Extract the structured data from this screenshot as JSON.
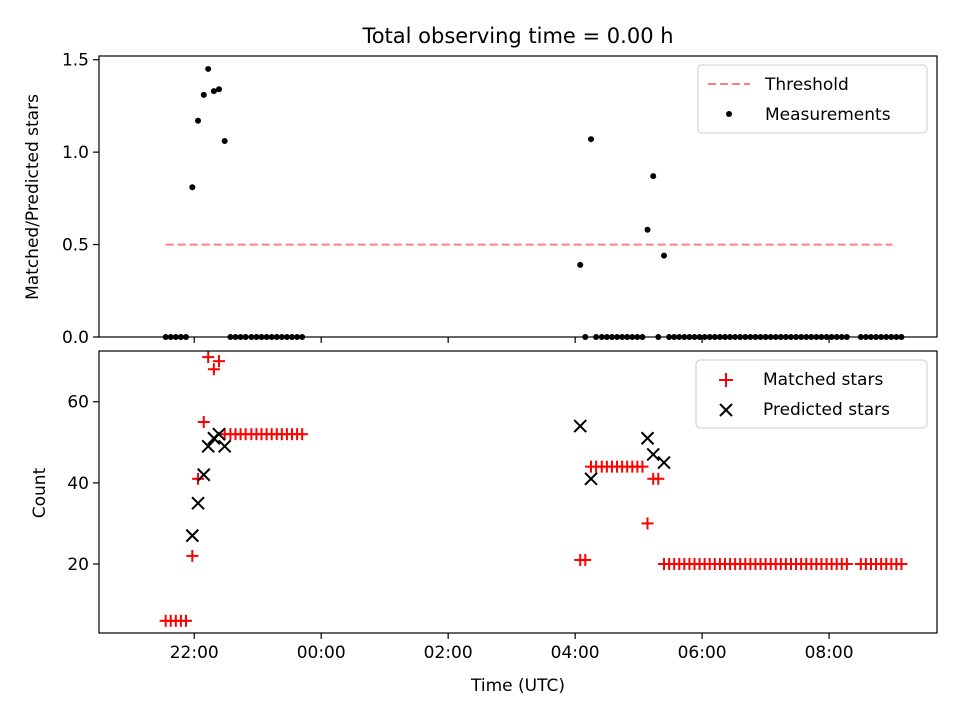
{
  "figure": {
    "title": "Total observing time = 0.00 h",
    "xlabel": "Time (UTC)",
    "x_ticks": [
      {
        "t": 22,
        "label": "22:00"
      },
      {
        "t": 24,
        "label": "00:00"
      },
      {
        "t": 26,
        "label": "02:00"
      },
      {
        "t": 28,
        "label": "04:00"
      },
      {
        "t": 30,
        "label": "06:00"
      },
      {
        "t": 32,
        "label": "08:00"
      }
    ],
    "xlim_hours_since_midnight_day1": [
      20.5,
      33.7
    ]
  },
  "colors": {
    "threshold": "#ff7f7f",
    "measurements": "#000000",
    "matched": "#ff0000",
    "predicted": "#000000"
  },
  "chart_data": [
    {
      "type": "scatter",
      "ylabel": "Matched/Predicted stars",
      "ylim": [
        0,
        1.52
      ],
      "y_ticks": [
        {
          "v": 0,
          "label": "0.0"
        },
        {
          "v": 0.5,
          "label": "0.5"
        },
        {
          "v": 1.0,
          "label": "1.0"
        },
        {
          "v": 1.5,
          "label": "1.5"
        }
      ],
      "legend": {
        "placement": "upper right",
        "entries": [
          "Threshold",
          "Measurements"
        ]
      },
      "threshold": {
        "name": "Threshold",
        "value": 0.5,
        "x_range": [
          21.55,
          33.0
        ]
      },
      "series": [
        {
          "name": "Measurements",
          "points": [
            [
              21.55,
              0
            ],
            [
              21.63,
              0
            ],
            [
              21.71,
              0
            ],
            [
              21.79,
              0
            ],
            [
              21.87,
              0
            ],
            [
              21.97,
              0.81
            ],
            [
              22.06,
              1.17
            ],
            [
              22.15,
              1.31
            ],
            [
              22.22,
              1.45
            ],
            [
              22.31,
              1.33
            ],
            [
              22.39,
              1.34
            ],
            [
              22.48,
              1.06
            ],
            [
              22.57,
              0
            ],
            [
              22.65,
              0
            ],
            [
              22.73,
              0
            ],
            [
              22.81,
              0
            ],
            [
              22.9,
              0
            ],
            [
              22.98,
              0
            ],
            [
              23.06,
              0
            ],
            [
              23.14,
              0
            ],
            [
              23.22,
              0
            ],
            [
              23.3,
              0
            ],
            [
              23.38,
              0
            ],
            [
              23.46,
              0
            ],
            [
              23.54,
              0
            ],
            [
              23.62,
              0
            ],
            [
              23.7,
              0
            ],
            [
              28.08,
              0.39
            ],
            [
              28.16,
              0
            ],
            [
              28.25,
              1.07
            ],
            [
              28.33,
              0
            ],
            [
              28.42,
              0
            ],
            [
              28.5,
              0
            ],
            [
              28.58,
              0
            ],
            [
              28.66,
              0
            ],
            [
              28.74,
              0
            ],
            [
              28.82,
              0
            ],
            [
              28.9,
              0
            ],
            [
              28.98,
              0
            ],
            [
              29.06,
              0
            ],
            [
              29.14,
              0.58
            ],
            [
              29.23,
              0.87
            ],
            [
              29.31,
              0
            ],
            [
              29.4,
              0.44
            ],
            [
              29.48,
              0
            ],
            [
              29.56,
              0
            ],
            [
              29.64,
              0
            ],
            [
              29.72,
              0
            ],
            [
              29.8,
              0
            ],
            [
              29.88,
              0
            ],
            [
              29.96,
              0
            ],
            [
              30.04,
              0
            ],
            [
              30.12,
              0
            ],
            [
              30.2,
              0
            ],
            [
              30.28,
              0
            ],
            [
              30.36,
              0
            ],
            [
              30.44,
              0
            ],
            [
              30.52,
              0
            ],
            [
              30.6,
              0
            ],
            [
              30.68,
              0
            ],
            [
              30.76,
              0
            ],
            [
              30.84,
              0
            ],
            [
              30.92,
              0
            ],
            [
              31.0,
              0
            ],
            [
              31.08,
              0
            ],
            [
              31.16,
              0
            ],
            [
              31.24,
              0
            ],
            [
              31.32,
              0
            ],
            [
              31.4,
              0
            ],
            [
              31.48,
              0
            ],
            [
              31.56,
              0
            ],
            [
              31.64,
              0
            ],
            [
              31.72,
              0
            ],
            [
              31.8,
              0
            ],
            [
              31.88,
              0
            ],
            [
              31.96,
              0
            ],
            [
              32.04,
              0
            ],
            [
              32.12,
              0
            ],
            [
              32.2,
              0
            ],
            [
              32.28,
              0
            ],
            [
              32.5,
              0
            ],
            [
              32.58,
              0
            ],
            [
              32.66,
              0
            ],
            [
              32.74,
              0
            ],
            [
              32.82,
              0
            ],
            [
              32.9,
              0
            ],
            [
              32.98,
              0
            ],
            [
              33.06,
              0
            ],
            [
              33.14,
              0
            ]
          ]
        }
      ]
    },
    {
      "type": "scatter",
      "ylabel": "Count",
      "ylim": [
        3,
        72.5
      ],
      "y_ticks": [
        {
          "v": 20,
          "label": "20"
        },
        {
          "v": 40,
          "label": "40"
        },
        {
          "v": 60,
          "label": "60"
        }
      ],
      "legend": {
        "placement": "upper right",
        "entries": [
          "Matched stars",
          "Predicted stars"
        ]
      },
      "series": [
        {
          "name": "Matched stars",
          "marker": "plus",
          "points": [
            [
              21.55,
              6
            ],
            [
              21.63,
              6
            ],
            [
              21.71,
              6
            ],
            [
              21.79,
              6
            ],
            [
              21.87,
              6
            ],
            [
              21.97,
              22
            ],
            [
              22.06,
              41
            ],
            [
              22.15,
              55
            ],
            [
              22.22,
              71
            ],
            [
              22.31,
              68
            ],
            [
              22.39,
              70
            ],
            [
              22.48,
              52
            ],
            [
              22.57,
              52
            ],
            [
              22.65,
              52
            ],
            [
              22.73,
              52
            ],
            [
              22.81,
              52
            ],
            [
              22.9,
              52
            ],
            [
              22.98,
              52
            ],
            [
              23.06,
              52
            ],
            [
              23.14,
              52
            ],
            [
              23.22,
              52
            ],
            [
              23.3,
              52
            ],
            [
              23.38,
              52
            ],
            [
              23.46,
              52
            ],
            [
              23.54,
              52
            ],
            [
              23.62,
              52
            ],
            [
              23.7,
              52
            ],
            [
              28.08,
              21
            ],
            [
              28.16,
              21
            ],
            [
              28.25,
              44
            ],
            [
              28.33,
              44
            ],
            [
              28.42,
              44
            ],
            [
              28.5,
              44
            ],
            [
              28.58,
              44
            ],
            [
              28.66,
              44
            ],
            [
              28.74,
              44
            ],
            [
              28.82,
              44
            ],
            [
              28.9,
              44
            ],
            [
              28.98,
              44
            ],
            [
              29.06,
              44
            ],
            [
              29.14,
              30
            ],
            [
              29.23,
              41
            ],
            [
              29.31,
              41
            ],
            [
              29.4,
              20
            ],
            [
              29.48,
              20
            ],
            [
              29.56,
              20
            ],
            [
              29.64,
              20
            ],
            [
              29.72,
              20
            ],
            [
              29.8,
              20
            ],
            [
              29.88,
              20
            ],
            [
              29.96,
              20
            ],
            [
              30.04,
              20
            ],
            [
              30.12,
              20
            ],
            [
              30.2,
              20
            ],
            [
              30.28,
              20
            ],
            [
              30.36,
              20
            ],
            [
              30.44,
              20
            ],
            [
              30.52,
              20
            ],
            [
              30.6,
              20
            ],
            [
              30.68,
              20
            ],
            [
              30.76,
              20
            ],
            [
              30.84,
              20
            ],
            [
              30.92,
              20
            ],
            [
              31.0,
              20
            ],
            [
              31.08,
              20
            ],
            [
              31.16,
              20
            ],
            [
              31.24,
              20
            ],
            [
              31.32,
              20
            ],
            [
              31.4,
              20
            ],
            [
              31.48,
              20
            ],
            [
              31.56,
              20
            ],
            [
              31.64,
              20
            ],
            [
              31.72,
              20
            ],
            [
              31.8,
              20
            ],
            [
              31.88,
              20
            ],
            [
              31.96,
              20
            ],
            [
              32.04,
              20
            ],
            [
              32.12,
              20
            ],
            [
              32.2,
              20
            ],
            [
              32.28,
              20
            ],
            [
              32.5,
              20
            ],
            [
              32.58,
              20
            ],
            [
              32.66,
              20
            ],
            [
              32.74,
              20
            ],
            [
              32.82,
              20
            ],
            [
              32.9,
              20
            ],
            [
              32.98,
              20
            ],
            [
              33.06,
              20
            ],
            [
              33.14,
              20
            ]
          ]
        },
        {
          "name": "Predicted stars",
          "marker": "x",
          "points": [
            [
              21.97,
              27
            ],
            [
              22.06,
              35
            ],
            [
              22.15,
              42
            ],
            [
              22.22,
              49
            ],
            [
              22.31,
              51
            ],
            [
              22.39,
              52
            ],
            [
              22.48,
              49
            ],
            [
              28.08,
              54
            ],
            [
              28.25,
              41
            ],
            [
              29.14,
              51
            ],
            [
              29.23,
              47
            ],
            [
              29.4,
              45
            ]
          ]
        }
      ]
    }
  ]
}
